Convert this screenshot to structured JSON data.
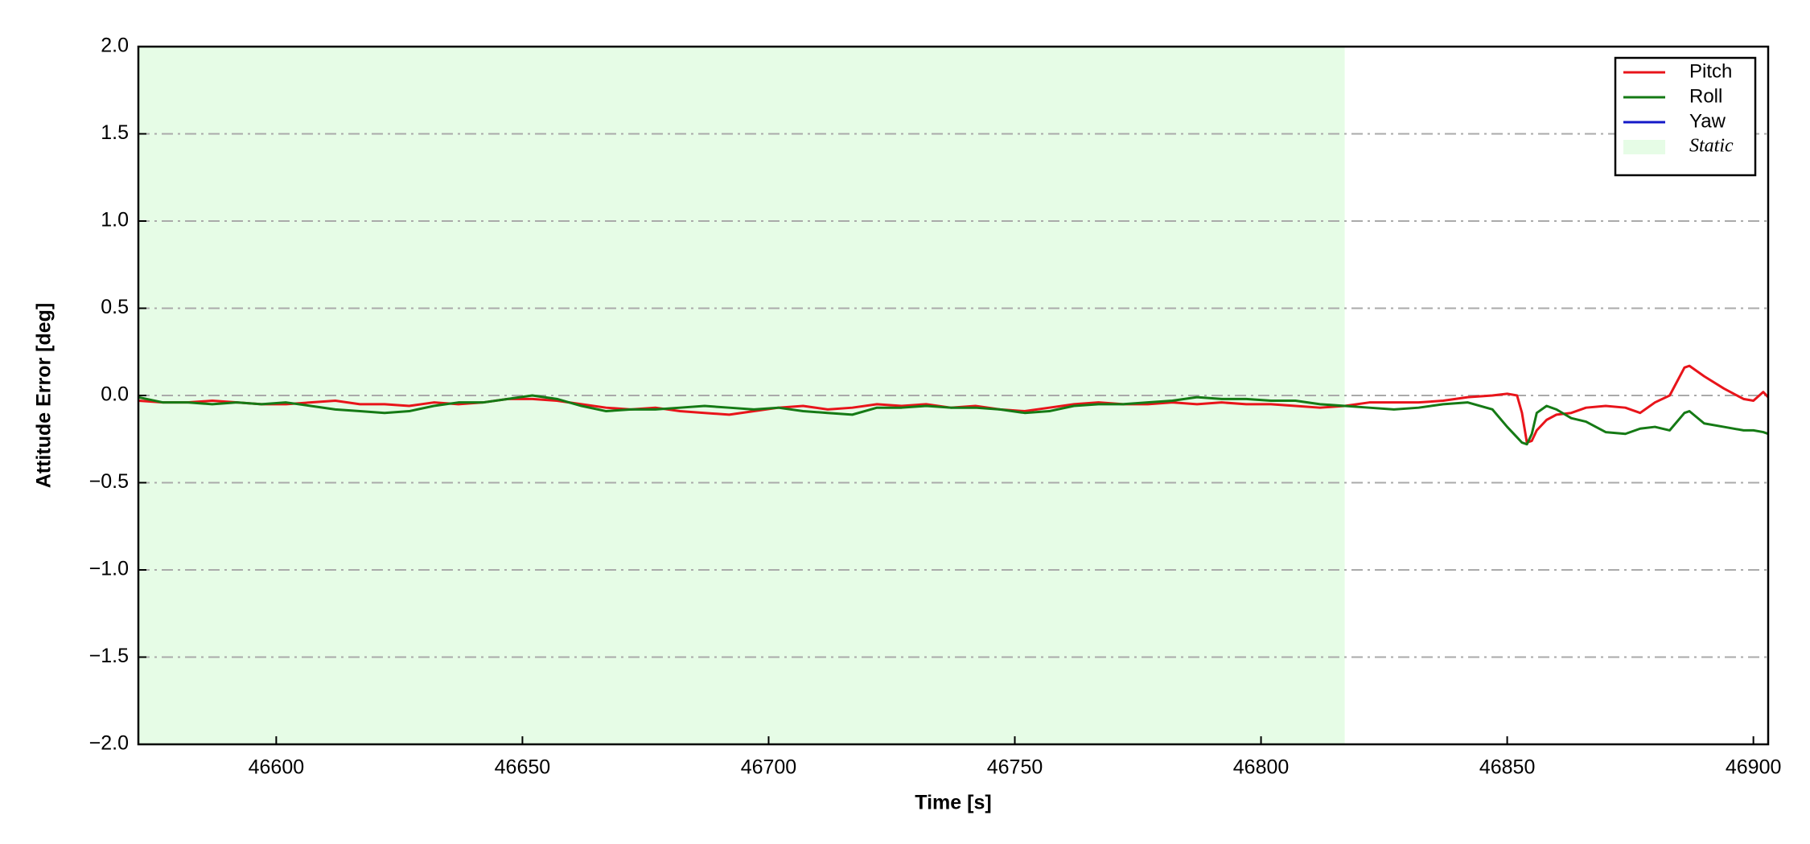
{
  "chart_data": {
    "type": "line",
    "xlabel": "Time [s]",
    "ylabel": "Attitude Error [deg]",
    "xlim": [
      46572,
      46903
    ],
    "ylim": [
      -2,
      2
    ],
    "xticks": [
      46600,
      46650,
      46700,
      46750,
      46800,
      46850,
      46900
    ],
    "yticks": [
      {
        "value": -2,
        "label": "−2.0"
      },
      {
        "value": -1.5,
        "label": "−1.5"
      },
      {
        "value": -1,
        "label": "−1.0"
      },
      {
        "value": -0.5,
        "label": "−0.5"
      },
      {
        "value": 0,
        "label": "0.0"
      },
      {
        "value": 0.5,
        "label": "0.5"
      },
      {
        "value": 1,
        "label": "1.0"
      },
      {
        "value": 1.5,
        "label": "1.5"
      },
      {
        "value": 2,
        "label": "2.0"
      }
    ],
    "grid": true,
    "legend": "upper right",
    "static_region": {
      "name": "Static",
      "color": "#e6fce6",
      "range": [
        46572,
        46817
      ]
    },
    "x": [
      46572,
      46577,
      46582,
      46587,
      46592,
      46597,
      46602,
      46607,
      46612,
      46617,
      46622,
      46627,
      46632,
      46637,
      46642,
      46647,
      46652,
      46657,
      46662,
      46667,
      46672,
      46677,
      46682,
      46687,
      46692,
      46697,
      46702,
      46707,
      46712,
      46717,
      46722,
      46727,
      46732,
      46737,
      46742,
      46747,
      46752,
      46757,
      46762,
      46767,
      46772,
      46777,
      46782,
      46787,
      46792,
      46797,
      46802,
      46807,
      46812,
      46817,
      46822,
      46827,
      46832,
      46837,
      46842,
      46847,
      46850,
      46852,
      46853,
      46854,
      46855,
      46856,
      46858,
      46860,
      46863,
      46866,
      46870,
      46874,
      46877,
      46880,
      46883,
      46886,
      46887,
      46890,
      46894,
      46898,
      46900,
      46902,
      46903
    ],
    "series": [
      {
        "name": "Pitch",
        "color": "#e8141a",
        "values": [
          -0.03,
          -0.04,
          -0.04,
          -0.03,
          -0.04,
          -0.05,
          -0.05,
          -0.04,
          -0.03,
          -0.05,
          -0.05,
          -0.06,
          -0.04,
          -0.05,
          -0.04,
          -0.02,
          -0.02,
          -0.03,
          -0.05,
          -0.07,
          -0.08,
          -0.07,
          -0.09,
          -0.1,
          -0.11,
          -0.09,
          -0.07,
          -0.06,
          -0.08,
          -0.07,
          -0.05,
          -0.06,
          -0.05,
          -0.07,
          -0.06,
          -0.08,
          -0.09,
          -0.07,
          -0.05,
          -0.04,
          -0.05,
          -0.05,
          -0.04,
          -0.05,
          -0.04,
          -0.05,
          -0.05,
          -0.06,
          -0.07,
          -0.06,
          -0.04,
          -0.04,
          -0.04,
          -0.03,
          -0.01,
          0.0,
          0.01,
          0.0,
          -0.1,
          -0.27,
          -0.26,
          -0.2,
          -0.14,
          -0.11,
          -0.1,
          -0.07,
          -0.06,
          -0.07,
          -0.1,
          -0.04,
          0.0,
          0.16,
          0.17,
          0.11,
          0.04,
          -0.02,
          -0.03,
          0.02,
          -0.01
        ]
      },
      {
        "name": "Roll",
        "color": "#157a15",
        "values": [
          -0.01,
          -0.04,
          -0.04,
          -0.05,
          -0.04,
          -0.05,
          -0.04,
          -0.06,
          -0.08,
          -0.09,
          -0.1,
          -0.09,
          -0.06,
          -0.04,
          -0.04,
          -0.02,
          0.0,
          -0.02,
          -0.06,
          -0.09,
          -0.08,
          -0.08,
          -0.07,
          -0.06,
          -0.07,
          -0.08,
          -0.07,
          -0.09,
          -0.1,
          -0.11,
          -0.07,
          -0.07,
          -0.06,
          -0.07,
          -0.07,
          -0.08,
          -0.1,
          -0.09,
          -0.06,
          -0.05,
          -0.05,
          -0.04,
          -0.03,
          -0.01,
          -0.02,
          -0.02,
          -0.03,
          -0.03,
          -0.05,
          -0.06,
          -0.07,
          -0.08,
          -0.07,
          -0.05,
          -0.04,
          -0.08,
          -0.18,
          -0.24,
          -0.27,
          -0.28,
          -0.22,
          -0.1,
          -0.06,
          -0.08,
          -0.13,
          -0.15,
          -0.21,
          -0.22,
          -0.19,
          -0.18,
          -0.2,
          -0.1,
          -0.09,
          -0.16,
          -0.18,
          -0.2,
          -0.2,
          -0.21,
          -0.22
        ]
      },
      {
        "name": "Yaw",
        "color": "#1419c8",
        "values": [
          null,
          null,
          null,
          null,
          null,
          null,
          null,
          null,
          null,
          null,
          null,
          null,
          null,
          null,
          null,
          null,
          null,
          null,
          null,
          null,
          null,
          null,
          null,
          null,
          null,
          null,
          null,
          null,
          null,
          null,
          null,
          null,
          null,
          null,
          null,
          null,
          null,
          null,
          null,
          null,
          null,
          null,
          null,
          null,
          null,
          null,
          null,
          null,
          null,
          null,
          null,
          null,
          null,
          null,
          null,
          null,
          null,
          null,
          null,
          null,
          null,
          null,
          null,
          null,
          null,
          null,
          null,
          null,
          null,
          null,
          null,
          null,
          null,
          null,
          null,
          null,
          null,
          null,
          null
        ]
      }
    ]
  }
}
